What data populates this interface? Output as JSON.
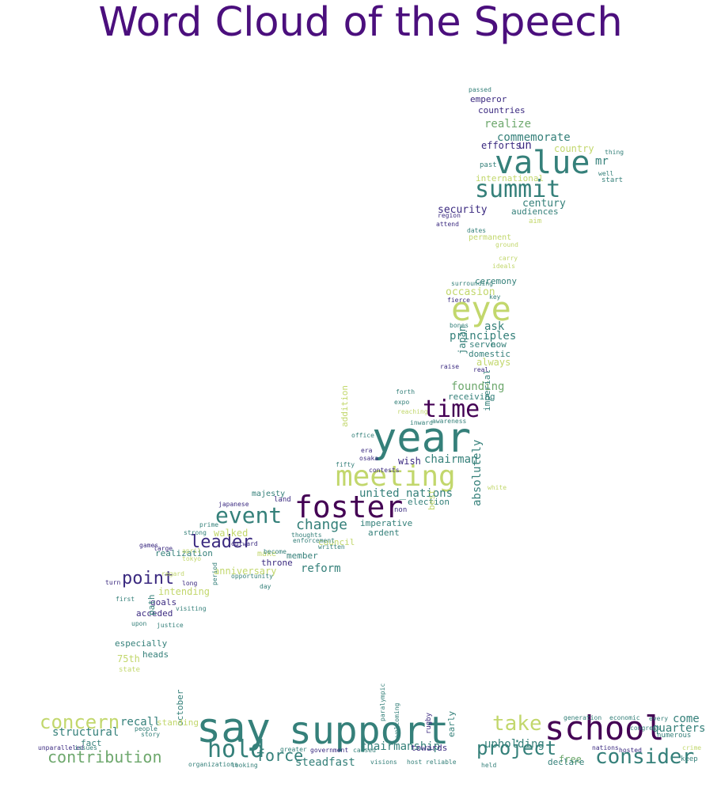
{
  "title": "Word Cloud of the Speech",
  "palette": {
    "dark_purple": "#440154",
    "indigo": "#3b2a80",
    "blue": "#31688e",
    "teal": "#35807a",
    "green": "#6ea86d",
    "lime": "#c2d76c",
    "yellow_green": "#b5d35c"
  },
  "words": [
    {
      "text": "say",
      "color": "teal"
    },
    {
      "text": "support",
      "color": "teal"
    },
    {
      "text": "year",
      "color": "teal"
    },
    {
      "text": "school",
      "color": "dark_purple"
    },
    {
      "text": "foster",
      "color": "dark_purple"
    },
    {
      "text": "value",
      "color": "teal"
    },
    {
      "text": "meeting",
      "color": "lime"
    },
    {
      "text": "eye",
      "color": "lime"
    },
    {
      "text": "summit",
      "color": "teal"
    },
    {
      "text": "time",
      "color": "dark_purple"
    },
    {
      "text": "event",
      "color": "teal"
    },
    {
      "text": "hold",
      "color": "teal"
    },
    {
      "text": "take",
      "color": "lime"
    },
    {
      "text": "concern",
      "color": "lime"
    },
    {
      "text": "project",
      "color": "teal"
    },
    {
      "text": "consider",
      "color": "teal"
    },
    {
      "text": "contribution",
      "color": "green"
    },
    {
      "text": "leader",
      "color": "indigo"
    },
    {
      "text": "point",
      "color": "indigo"
    },
    {
      "text": "change",
      "color": "teal"
    },
    {
      "text": "force",
      "color": "teal"
    },
    {
      "text": "chairman",
      "color": "teal"
    },
    {
      "text": "chairmanship",
      "color": "teal"
    },
    {
      "text": "steadfast",
      "color": "teal"
    },
    {
      "text": "upholding",
      "color": "teal"
    },
    {
      "text": "structural",
      "color": "teal"
    },
    {
      "text": "recall",
      "color": "teal"
    },
    {
      "text": "quarters",
      "color": "teal"
    },
    {
      "text": "come",
      "color": "teal"
    },
    {
      "text": "reform",
      "color": "teal"
    },
    {
      "text": "founding",
      "color": "green"
    },
    {
      "text": "principles",
      "color": "teal"
    },
    {
      "text": "united_nations",
      "color": "teal"
    },
    {
      "text": "absolutely",
      "color": "teal"
    },
    {
      "text": "commemorate",
      "color": "teal"
    },
    {
      "text": "realize",
      "color": "green"
    },
    {
      "text": "security",
      "color": "indigo"
    },
    {
      "text": "century",
      "color": "teal"
    },
    {
      "text": "country",
      "color": "lime"
    },
    {
      "text": "mr",
      "color": "teal"
    },
    {
      "text": "efforts",
      "color": "indigo"
    },
    {
      "text": "un",
      "color": "indigo"
    },
    {
      "text": "countries",
      "color": "indigo"
    },
    {
      "text": "emperor",
      "color": "indigo"
    },
    {
      "text": "audiences",
      "color": "teal"
    },
    {
      "text": "international",
      "color": "lime"
    },
    {
      "text": "occasion",
      "color": "lime"
    },
    {
      "text": "ceremony",
      "color": "teal"
    },
    {
      "text": "ask",
      "color": "teal"
    },
    {
      "text": "serve",
      "color": "teal"
    },
    {
      "text": "now",
      "color": "teal"
    },
    {
      "text": "domestic",
      "color": "teal"
    },
    {
      "text": "always",
      "color": "lime"
    },
    {
      "text": "japan",
      "color": "teal"
    },
    {
      "text": "receiving",
      "color": "teal"
    },
    {
      "text": "imperial",
      "color": "teal"
    },
    {
      "text": "wish",
      "color": "indigo"
    },
    {
      "text": "addition",
      "color": "lime"
    },
    {
      "text": "election",
      "color": "teal"
    },
    {
      "text": "best",
      "color": "lime"
    },
    {
      "text": "imperative",
      "color": "teal"
    },
    {
      "text": "ardent",
      "color": "teal"
    },
    {
      "text": "council",
      "color": "lime"
    },
    {
      "text": "walked",
      "color": "lime"
    },
    {
      "text": "anniversary",
      "color": "lime"
    },
    {
      "text": "realization",
      "color": "teal"
    },
    {
      "text": "intending",
      "color": "lime"
    },
    {
      "text": "goals",
      "color": "indigo"
    },
    {
      "text": "acceded",
      "color": "indigo"
    },
    {
      "text": "especially",
      "color": "teal"
    },
    {
      "text": "75th",
      "color": "lime"
    },
    {
      "text": "heads",
      "color": "teal"
    },
    {
      "text": "path",
      "color": "teal"
    },
    {
      "text": "throne",
      "color": "indigo"
    },
    {
      "text": "member",
      "color": "teal"
    },
    {
      "text": "make",
      "color": "lime"
    },
    {
      "text": "majesty",
      "color": "teal"
    },
    {
      "text": "fact",
      "color": "teal"
    },
    {
      "text": "october",
      "color": "teal"
    },
    {
      "text": "free",
      "color": "green"
    },
    {
      "text": "declare",
      "color": "teal"
    },
    {
      "text": "towards",
      "color": "indigo"
    },
    {
      "text": "early",
      "color": "teal"
    },
    {
      "text": "standing",
      "color": "lime"
    },
    {
      "text": "permanent",
      "color": "lime"
    },
    {
      "text": "attend",
      "color": "indigo"
    },
    {
      "text": "region",
      "color": "indigo"
    },
    {
      "text": "dates",
      "color": "teal"
    },
    {
      "text": "past",
      "color": "teal"
    },
    {
      "text": "start",
      "color": "teal"
    },
    {
      "text": "well",
      "color": "teal"
    },
    {
      "text": "thing",
      "color": "teal"
    },
    {
      "text": "passed",
      "color": "teal"
    },
    {
      "text": "aim",
      "color": "lime"
    },
    {
      "text": "raise",
      "color": "indigo"
    },
    {
      "text": "real",
      "color": "indigo"
    },
    {
      "text": "fierce",
      "color": "indigo"
    },
    {
      "text": "bones",
      "color": "teal"
    },
    {
      "text": "surrounding",
      "color": "teal"
    },
    {
      "text": "inward",
      "color": "teal"
    },
    {
      "text": "forth",
      "color": "teal"
    },
    {
      "text": "expo",
      "color": "teal"
    },
    {
      "text": "office",
      "color": "teal"
    },
    {
      "text": "era",
      "color": "indigo"
    },
    {
      "text": "osaka",
      "color": "indigo"
    },
    {
      "text": "contests",
      "color": "indigo"
    },
    {
      "text": "fifty",
      "color": "teal"
    },
    {
      "text": "land",
      "color": "indigo"
    },
    {
      "text": "japanese",
      "color": "indigo"
    },
    {
      "text": "strong",
      "color": "teal"
    },
    {
      "text": "prime",
      "color": "teal"
    },
    {
      "text": "outward",
      "color": "indigo"
    },
    {
      "text": "thoughts",
      "color": "teal"
    },
    {
      "text": "become",
      "color": "teal"
    },
    {
      "text": "enforcement",
      "color": "teal"
    },
    {
      "text": "written",
      "color": "teal"
    },
    {
      "text": "opportunity",
      "color": "teal"
    },
    {
      "text": "day",
      "color": "teal"
    },
    {
      "text": "period",
      "color": "teal"
    },
    {
      "text": "games",
      "color": "indigo"
    },
    {
      "text": "large",
      "color": "indigo"
    },
    {
      "text": "long",
      "color": "indigo"
    },
    {
      "text": "turn",
      "color": "indigo"
    },
    {
      "text": "upon",
      "color": "teal"
    },
    {
      "text": "visiting",
      "color": "teal"
    },
    {
      "text": "justice",
      "color": "teal"
    },
    {
      "text": "first",
      "color": "teal"
    },
    {
      "text": "tokyo",
      "color": "lime"
    },
    {
      "text": "april",
      "color": "lime"
    },
    {
      "text": "regard",
      "color": "lime"
    },
    {
      "text": "state",
      "color": "lime"
    },
    {
      "text": "non",
      "color": "indigo"
    },
    {
      "text": "white",
      "color": "lime"
    },
    {
      "text": "rugby",
      "color": "indigo"
    },
    {
      "text": "economic",
      "color": "teal"
    },
    {
      "text": "every",
      "color": "teal"
    },
    {
      "text": "generation",
      "color": "teal"
    },
    {
      "text": "congress",
      "color": "teal"
    },
    {
      "text": "nations",
      "color": "indigo"
    },
    {
      "text": "hosted",
      "color": "indigo"
    },
    {
      "text": "numerous",
      "color": "teal"
    },
    {
      "text": "keep",
      "color": "teal"
    },
    {
      "text": "crime",
      "color": "lime"
    },
    {
      "text": "held",
      "color": "teal"
    },
    {
      "text": "paralympic",
      "color": "teal"
    },
    {
      "text": "greater",
      "color": "teal"
    },
    {
      "text": "organizations",
      "color": "teal"
    },
    {
      "text": "looking",
      "color": "teal"
    },
    {
      "text": "government",
      "color": "indigo"
    },
    {
      "text": "caused",
      "color": "teal"
    },
    {
      "text": "welcoming",
      "color": "teal"
    },
    {
      "text": "visions",
      "color": "teal"
    },
    {
      "text": "host",
      "color": "teal"
    },
    {
      "text": "reliable",
      "color": "teal"
    },
    {
      "text": "unparalleled",
      "color": "indigo"
    },
    {
      "text": "issues",
      "color": "teal"
    },
    {
      "text": "story",
      "color": "teal"
    },
    {
      "text": "people",
      "color": "teal"
    },
    {
      "text": "ground",
      "color": "lime"
    },
    {
      "text": "ideals",
      "color": "lime"
    },
    {
      "text": "carry",
      "color": "lime"
    },
    {
      "text": "key",
      "color": "teal"
    },
    {
      "text": "awareness",
      "color": "teal"
    },
    {
      "text": "reaching",
      "color": "lime"
    }
  ]
}
